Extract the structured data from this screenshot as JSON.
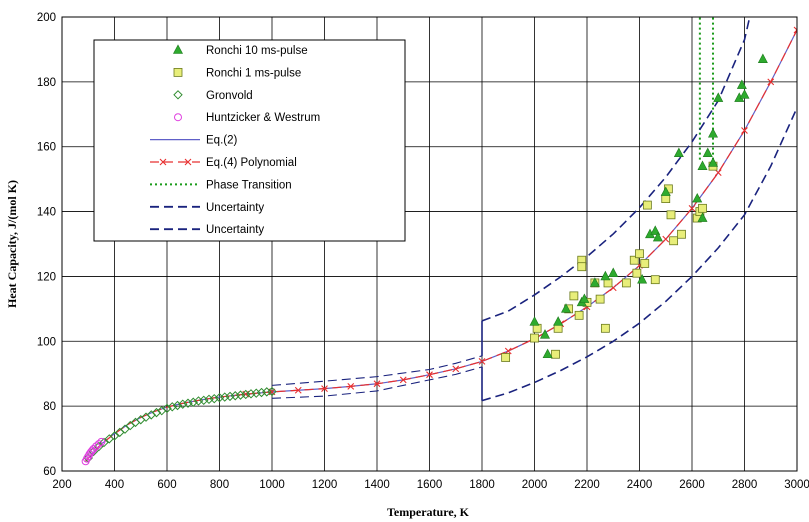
{
  "chart_data": {
    "type": "scatter",
    "xlabel": "Temperature, K",
    "ylabel": "Heat Capacity, J/(mol K)",
    "xlim": [
      200,
      3000
    ],
    "ylim": [
      60,
      200
    ],
    "x_ticks": [
      200,
      400,
      600,
      800,
      1000,
      1200,
      1400,
      1600,
      1800,
      2000,
      2200,
      2400,
      2600,
      2800,
      3000
    ],
    "y_ticks": [
      60,
      80,
      100,
      120,
      140,
      160,
      180,
      200
    ],
    "grid": true,
    "legend_position": "top-left",
    "series": [
      {
        "name": "Ronchi 10  ms-pulse",
        "kind": "markers",
        "marker": "triangle",
        "color": "#2eaa2e",
        "x": [
          2000,
          2040,
          2050,
          2090,
          2120,
          2180,
          2190,
          2230,
          2270,
          2300,
          2410,
          2440,
          2460,
          2470,
          2500,
          2550,
          2620,
          2640,
          2660,
          2680,
          2700,
          2780,
          2790,
          2800,
          2870,
          2680,
          2640
        ],
        "y": [
          106,
          102,
          96,
          106,
          110,
          112,
          113,
          118,
          120,
          121,
          119,
          133,
          134,
          132,
          146,
          158,
          144,
          154,
          158,
          164,
          175,
          175,
          179,
          176,
          187,
          155,
          138
        ]
      },
      {
        "name": "Ronchi 1 ms-pulse",
        "kind": "markers",
        "marker": "square",
        "color": "#e8ee7a",
        "x": [
          1890,
          2000,
          2010,
          2080,
          2090,
          2130,
          2150,
          2170,
          2180,
          2180,
          2200,
          2230,
          2250,
          2270,
          2280,
          2350,
          2380,
          2390,
          2400,
          2420,
          2430,
          2460,
          2500,
          2510,
          2520,
          2530,
          2560,
          2620,
          2630,
          2640,
          2680
        ],
        "y": [
          95,
          101,
          104,
          96,
          104,
          110,
          114,
          108,
          125,
          123,
          112,
          118,
          113,
          104,
          118,
          118,
          125,
          121,
          127,
          124,
          142,
          119,
          144,
          147,
          139,
          131,
          133,
          138,
          140,
          141,
          154
        ]
      },
      {
        "name": "Gronvold",
        "kind": "markers",
        "marker": "diamond",
        "color": "#2e8b2e",
        "x": [
          300,
          320,
          340,
          360,
          380,
          400,
          420,
          440,
          460,
          480,
          500,
          520,
          540,
          560,
          580,
          600,
          620,
          640,
          660,
          680,
          700,
          720,
          740,
          760,
          780,
          800,
          820,
          840,
          860,
          880,
          900,
          920,
          940,
          960,
          980,
          1000
        ],
        "y": [
          64,
          66,
          67.5,
          68.8,
          69.9,
          70.8,
          71.9,
          72.9,
          74.0,
          75.0,
          75.8,
          76.6,
          77.3,
          78.0,
          78.6,
          79.3,
          79.8,
          80.2,
          80.6,
          80.9,
          81.2,
          81.6,
          81.8,
          82.1,
          82.3,
          82.6,
          82.8,
          83.0,
          83.2,
          83.4,
          83.6,
          83.8,
          84.0,
          84.2,
          84.4,
          84.5
        ]
      },
      {
        "name": "Huntzicker & Westrum",
        "kind": "markers",
        "marker": "circle",
        "color": "#e040e0",
        "x": [
          290,
          295,
          300,
          305,
          310,
          315,
          320,
          330,
          340,
          350
        ],
        "y": [
          63,
          63.8,
          64.5,
          65.2,
          65.8,
          66.3,
          66.8,
          67.6,
          68.3,
          69.0
        ]
      },
      {
        "name": "Eq.(2)",
        "kind": "line",
        "dash": "solid",
        "color": "#6060c8",
        "x": [
          290,
          300,
          350,
          400,
          450,
          500,
          550,
          600,
          650,
          700,
          750,
          800,
          900,
          1000,
          1100,
          1200,
          1300,
          1400,
          1500,
          1600,
          1700,
          1800,
          1900,
          2000,
          2100,
          2200,
          2300,
          2400,
          2500,
          2600,
          2700,
          2800,
          2900,
          3000
        ],
        "y": [
          63,
          64,
          68.3,
          71.5,
          74.3,
          76.5,
          78.3,
          79.7,
          80.7,
          81.5,
          82.2,
          82.8,
          83.7,
          84.4,
          84.9,
          85.4,
          86.1,
          86.9,
          88.1,
          89.7,
          91.5,
          93.8,
          97.0,
          100.8,
          105.4,
          110.6,
          116.5,
          123.4,
          131.5,
          141.0,
          152.0,
          165.0,
          180.0,
          196.0
        ]
      },
      {
        "name": "Eq.(4) Polynomial",
        "kind": "line",
        "dash": "dashed",
        "marker": "x",
        "color": "#e83030",
        "x": [
          290,
          300,
          350,
          400,
          450,
          500,
          550,
          600,
          650,
          700,
          750,
          800,
          900,
          1000,
          1100,
          1200,
          1300,
          1400,
          1500,
          1600,
          1700,
          1800,
          1900,
          2000,
          2100,
          2200,
          2300,
          2400,
          2500,
          2600,
          2700,
          2800,
          2900,
          3000
        ],
        "y": [
          63,
          64,
          68.3,
          71.5,
          74.3,
          76.5,
          78.3,
          79.7,
          80.7,
          81.5,
          82.2,
          82.8,
          83.7,
          84.4,
          84.9,
          85.4,
          86.1,
          86.9,
          88.1,
          89.7,
          91.5,
          93.8,
          97.0,
          100.8,
          105.4,
          110.6,
          116.5,
          123.4,
          131.5,
          141.0,
          152.0,
          165.0,
          180.0,
          196.0
        ]
      },
      {
        "name": "Phase Transition",
        "kind": "vlines",
        "dash": "dotted",
        "color": "#1a9a1a",
        "x": [
          2630,
          2680
        ],
        "y": [
          156,
          200
        ]
      },
      {
        "name": "Uncertainty",
        "kind": "line",
        "dash": "dashed",
        "color": "#1a237e",
        "x": [
          1000,
          1200,
          1400,
          1600,
          1700,
          1800,
          1800,
          1900,
          2000,
          2100,
          2200,
          2300,
          2400,
          2500,
          2600,
          2700,
          2800,
          2820
        ],
        "y": [
          86.4,
          87.7,
          89.1,
          91.3,
          93.2,
          95.5,
          106.3,
          109.3,
          114.3,
          119.9,
          126.1,
          133.1,
          141.2,
          150.6,
          161.5,
          174.2,
          193.0,
          200
        ]
      },
      {
        "name": "Uncertainty",
        "kind": "line",
        "dash": "dashed",
        "color": "#1a237e",
        "x": [
          1000,
          1200,
          1400,
          1600,
          1700,
          1800,
          1800,
          1900,
          2000,
          2100,
          2200,
          2300,
          2400,
          2500,
          2600,
          2700,
          2800,
          2900,
          3000
        ],
        "y": [
          82.4,
          83.1,
          84.7,
          88.1,
          89.8,
          92.1,
          81.7,
          84.1,
          87.3,
          91.0,
          95.2,
          100.0,
          105.6,
          112.3,
          120.0,
          128.8,
          139.0,
          154.0,
          172.0
        ]
      }
    ]
  }
}
